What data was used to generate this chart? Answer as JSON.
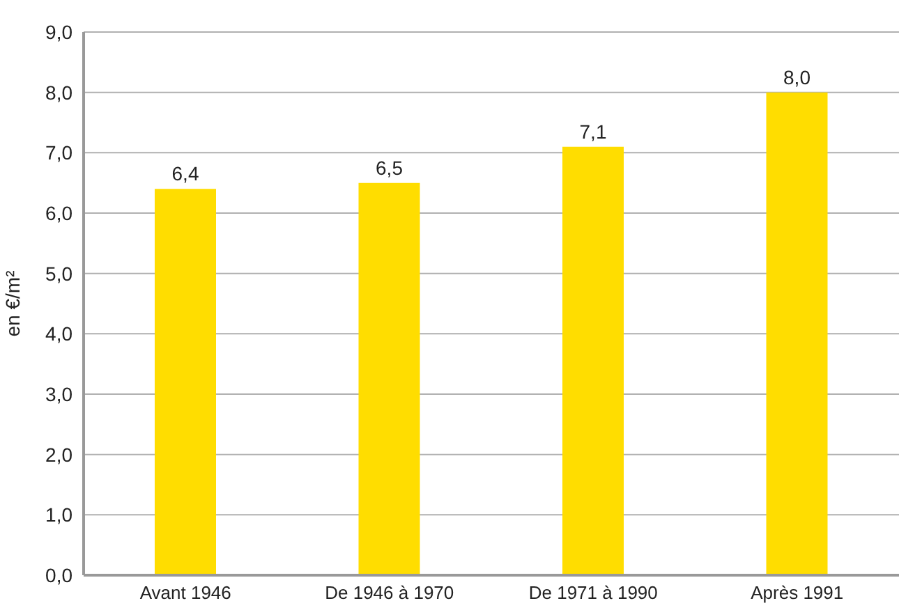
{
  "chart_data": {
    "type": "bar",
    "ylabel": "en €/m²",
    "categories": [
      "Avant 1946",
      "De 1946 à 1970",
      "De 1971 à 1990",
      "Après 1991"
    ],
    "values": [
      6.4,
      6.5,
      7.1,
      8.0
    ],
    "color": "#ffdd00",
    "value_labels": [
      "6,4",
      "6,5",
      "7,1",
      "8,0"
    ],
    "ylim": [
      0,
      9
    ],
    "yticks": [
      {
        "value": 0,
        "label": "0,0"
      },
      {
        "value": 1,
        "label": "1,0"
      },
      {
        "value": 2,
        "label": "2,0"
      },
      {
        "value": 3,
        "label": "3,0"
      },
      {
        "value": 4,
        "label": "4,0"
      },
      {
        "value": 5,
        "label": "5,0"
      },
      {
        "value": 6,
        "label": "6,0"
      },
      {
        "value": 7,
        "label": "7,0"
      },
      {
        "value": 8,
        "label": "8,0"
      },
      {
        "value": 9,
        "label": "9,0"
      }
    ],
    "grid": "y"
  }
}
